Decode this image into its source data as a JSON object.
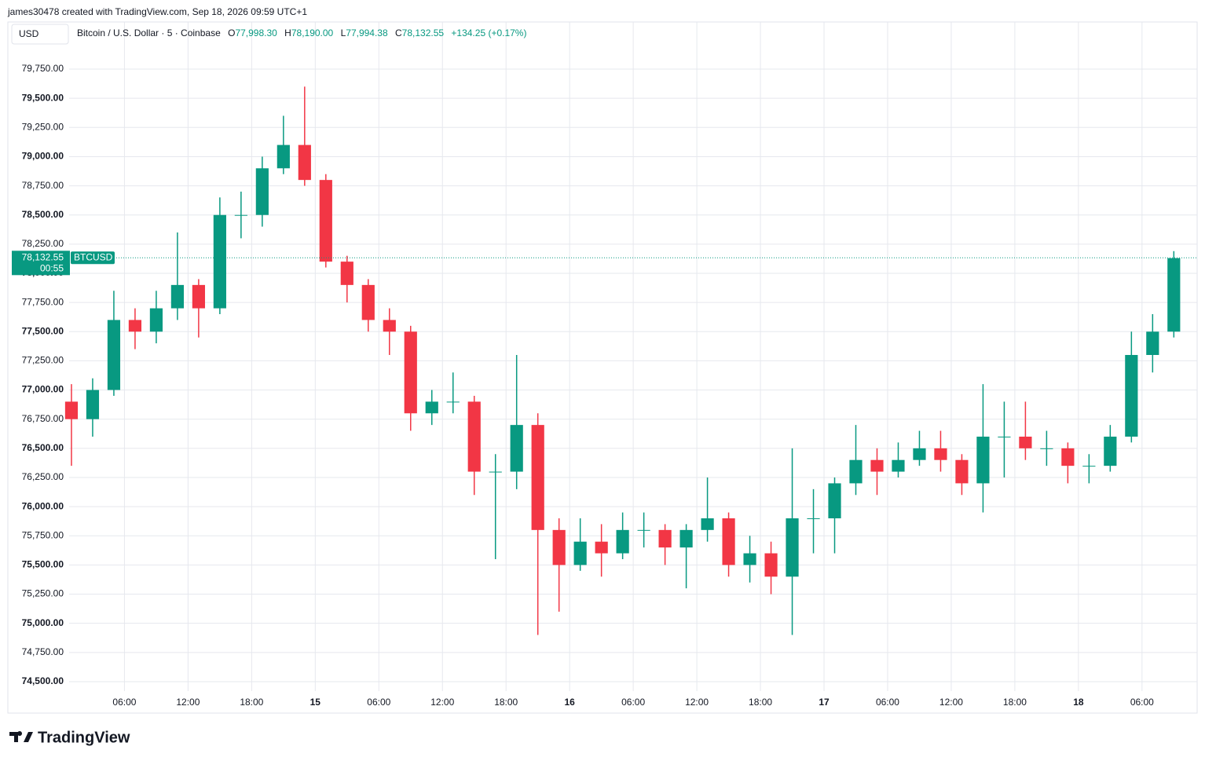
{
  "header": {
    "credit": "james30478 created with TradingView.com, Sep 18, 2026 09:59 UTC+1",
    "currency": "USD",
    "symbol": "Bitcoin / U.S. Dollar · 5 · Coinbase",
    "o_label": "O",
    "o": "77,998.30",
    "h_label": "H",
    "h": "78,190.00",
    "l_label": "L",
    "l": "77,994.38",
    "c_label": "C",
    "c": "78,132.55",
    "change": "+134.25 (+0.17%)"
  },
  "chart_data": {
    "type": "candlestick",
    "color_up": "#089981",
    "color_down": "#f23645",
    "grid": true,
    "x": [
      1,
      3,
      5,
      7,
      9,
      11,
      13,
      15,
      17,
      19,
      21,
      23,
      25,
      27,
      29,
      31,
      33,
      35,
      37,
      39,
      41,
      43,
      45,
      47,
      49,
      51,
      53,
      55,
      57,
      59,
      61,
      63,
      65,
      67,
      69,
      71,
      73,
      75,
      77,
      79,
      81,
      83,
      85,
      87,
      89,
      91,
      93,
      95,
      97,
      99,
      101,
      103,
      105
    ],
    "open": [
      76900,
      76750,
      77000,
      77600,
      77500,
      77700,
      77900,
      77700,
      78500,
      78500,
      78900,
      79100,
      78800,
      78100,
      77900,
      77600,
      77500,
      76800,
      76900,
      76900,
      76300,
      76300,
      76700,
      75800,
      75500,
      75700,
      75600,
      75800,
      75800,
      75650,
      75800,
      75900,
      75500,
      75600,
      75400,
      75900,
      75900,
      76200,
      76400,
      76300,
      76400,
      76500,
      76400,
      76200,
      76600,
      76600,
      76500,
      76500,
      76350,
      76350,
      76600,
      77300,
      77500
    ],
    "high": [
      77050,
      77100,
      77850,
      77700,
      77850,
      78350,
      77950,
      78650,
      78700,
      79000,
      79350,
      79600,
      78850,
      78150,
      77950,
      77700,
      77550,
      77000,
      77150,
      76950,
      76450,
      77300,
      76800,
      75900,
      75900,
      75850,
      75950,
      75950,
      75850,
      75850,
      76250,
      75950,
      75750,
      75700,
      76500,
      76150,
      76250,
      76700,
      76500,
      76550,
      76650,
      76650,
      76450,
      77050,
      76900,
      76900,
      76650,
      76550,
      76450,
      76700,
      77500,
      77650,
      78190
    ],
    "low": [
      76350,
      76600,
      76950,
      77350,
      77400,
      77600,
      77450,
      77650,
      78300,
      78400,
      78850,
      78750,
      78050,
      77750,
      77500,
      77300,
      76650,
      76700,
      76800,
      76100,
      75550,
      76150,
      74900,
      75100,
      75450,
      75400,
      75550,
      75650,
      75500,
      75300,
      75700,
      75400,
      75350,
      75250,
      74900,
      75600,
      75600,
      76100,
      76100,
      76250,
      76350,
      76300,
      76100,
      75950,
      76250,
      76400,
      76350,
      76200,
      76200,
      76300,
      76550,
      77150,
      77450
    ],
    "close": [
      76750,
      77000,
      77600,
      77500,
      77700,
      77900,
      77700,
      78500,
      78500,
      78900,
      79100,
      78800,
      78100,
      77900,
      77600,
      77500,
      76800,
      76900,
      76900,
      76300,
      76300,
      76700,
      75800,
      75500,
      75700,
      75600,
      75800,
      75800,
      75650,
      75800,
      75900,
      75500,
      75600,
      75400,
      75900,
      75900,
      76200,
      76400,
      76300,
      76400,
      76500,
      76400,
      76200,
      76600,
      76600,
      76500,
      76500,
      76350,
      76350,
      76600,
      77300,
      77500,
      78130
    ],
    "xlim": [
      -5,
      107.2
    ],
    "ylim": [
      74419,
      80154
    ],
    "xticks": [
      {
        "value": 6,
        "label": "06:00"
      },
      {
        "value": 12,
        "label": "12:00"
      },
      {
        "value": 18,
        "label": "18:00"
      },
      {
        "value": 24,
        "label": "15"
      },
      {
        "value": 30,
        "label": "06:00"
      },
      {
        "value": 36,
        "label": "12:00"
      },
      {
        "value": 42,
        "label": "18:00"
      },
      {
        "value": 48,
        "label": "16"
      },
      {
        "value": 54,
        "label": "06:00"
      },
      {
        "value": 60,
        "label": "12:00"
      },
      {
        "value": 66,
        "label": "18:00"
      },
      {
        "value": 72,
        "label": "17"
      },
      {
        "value": 78,
        "label": "06:00"
      },
      {
        "value": 84,
        "label": "12:00"
      },
      {
        "value": 90,
        "label": "18:00"
      },
      {
        "value": 96,
        "label": "18"
      },
      {
        "value": 102,
        "label": "06:00"
      }
    ],
    "yticks": [
      {
        "value": 74500,
        "label": "74,500.00"
      },
      {
        "value": 74750,
        "label": "74,750.00"
      },
      {
        "value": 75000,
        "label": "75,000.00"
      },
      {
        "value": 75250,
        "label": "75,250.00"
      },
      {
        "value": 75500,
        "label": "75,500.00"
      },
      {
        "value": 75750,
        "label": "75,750.00"
      },
      {
        "value": 76000,
        "label": "76,000.00"
      },
      {
        "value": 76250,
        "label": "76,250.00"
      },
      {
        "value": 76500,
        "label": "76,500.00"
      },
      {
        "value": 76750,
        "label": "76,750.00"
      },
      {
        "value": 77000,
        "label": "77,000.00"
      },
      {
        "value": 77250,
        "label": "77,250.00"
      },
      {
        "value": 77500,
        "label": "77,500.00"
      },
      {
        "value": 77750,
        "label": "77,750.00"
      },
      {
        "value": 78000,
        "label": "78,000.00"
      },
      {
        "value": 78250,
        "label": "78,250.00"
      },
      {
        "value": 78500,
        "label": "78,500.00"
      },
      {
        "value": 78750,
        "label": "78,750.00"
      },
      {
        "value": 79000,
        "label": "79,000.00"
      },
      {
        "value": 79250,
        "label": "79,250.00"
      },
      {
        "value": 79500,
        "label": "79,500.00"
      },
      {
        "value": 79750,
        "label": "79,750.00"
      }
    ],
    "last_price": {
      "value": 78132.55,
      "label": "78,132.55"
    },
    "countdown": "00:55",
    "ticker": "BTCUSD"
  },
  "footer": {
    "brand": "TradingView"
  }
}
